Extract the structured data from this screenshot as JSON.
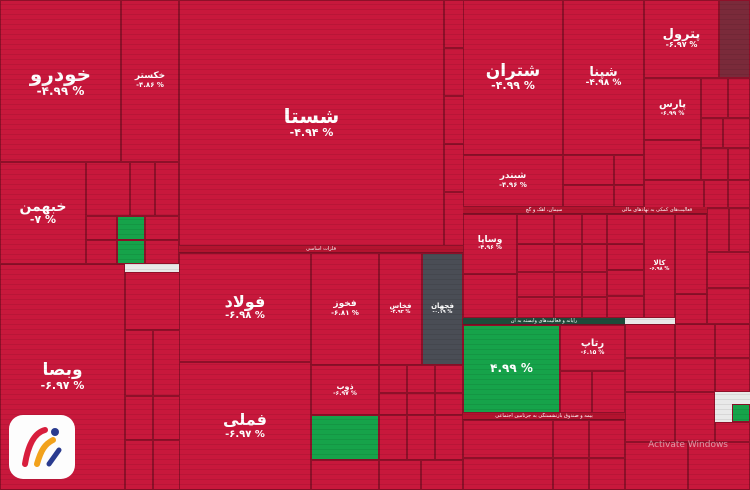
{
  "colors": {
    "negative": "#c8183c",
    "positive": "#16a34a",
    "neutral": "#4a4d55"
  },
  "big": {
    "khodro": {
      "name": "خودرو",
      "pct": "-۴.۹۹ %"
    },
    "shasta": {
      "name": "شستا",
      "pct": "-۴.۹۴ %"
    },
    "shetran": {
      "name": "شتران",
      "pct": "-۴.۹۹ %"
    },
    "shepna": {
      "name": "شپنا",
      "pct": "-۴.۹۸ %"
    },
    "petrol": {
      "name": "پترول",
      "pct": "-۶.۹۷ %"
    },
    "khabahman": {
      "name": "خبهمن",
      "pct": "-۷ %"
    },
    "foolad": {
      "name": "فولاد",
      "pct": "-۶.۹۸ %"
    },
    "femeli": {
      "name": "فملی",
      "pct": "-۶.۹۷ %"
    },
    "vebsader": {
      "name": "وبصا",
      "pct": "-۶.۹۷ %"
    },
    "khekaster": {
      "name": "خکستر",
      "pct": "-۴.۸۶ %"
    },
    "vesapa": {
      "name": "وساپا",
      "pct": "-۴.۹۶ %"
    },
    "green_big": {
      "name": "",
      "pct": "۴.۹۹ %"
    },
    "ratap": {
      "name": "رتاپ",
      "pct": "-۶.۱۵ %"
    },
    "fekhoz": {
      "name": "فخوز",
      "pct": "-۶.۸۱ %"
    },
    "fajahan": {
      "name": "فجهان",
      "pct": "-۰.۱۹ %"
    },
    "fakhad": {
      "name": "فخاس",
      "pct": "-۴.۹۳ %"
    },
    "kala": {
      "name": "کالا",
      "pct": "-۶.۹۸ %"
    },
    "zob": {
      "name": "ذوب",
      "pct": "-۶.۹۷ %"
    },
    "shebandar": {
      "name": "شبندر",
      "pct": "-۴.۹۶ %"
    },
    "pars": {
      "name": "پارس",
      "pct": "-۶.۹۹ %"
    }
  },
  "headers": {
    "felezat": "فلزات اساسی",
    "siman": "سیمان، آهک و گچ",
    "rayaneh": "رایانه و فعالیت‌های وابسته به آن",
    "bime": "بیمه و صندوق بازنشستگی به جزتامین اجتماعی",
    "fanni": "فعالیت‌های کمکی به نهادهای مالی"
  },
  "watermark": "Activate Windows"
}
